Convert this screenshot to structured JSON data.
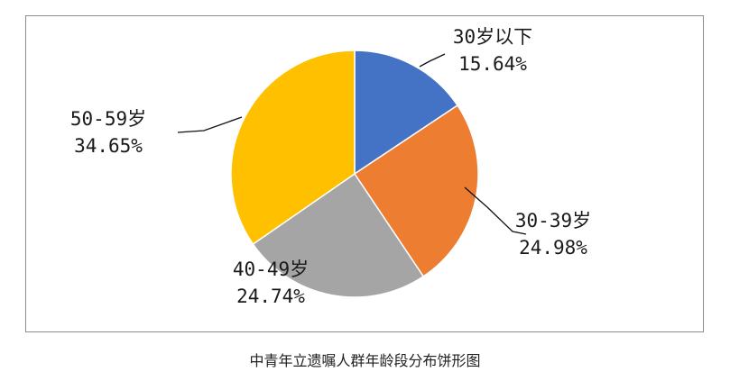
{
  "chart_data": {
    "type": "pie",
    "title": "中青年立遗嘱人群年龄段分布饼形图",
    "slices": [
      {
        "label": "30岁以下",
        "value": 15.64,
        "value_text": "15.64%",
        "color": "#4472C4"
      },
      {
        "label": "30-39岁",
        "value": 24.98,
        "value_text": "24.98%",
        "color": "#ED7D31"
      },
      {
        "label": "40-49岁",
        "value": 24.74,
        "value_text": "24.74%",
        "color": "#A5A5A5"
      },
      {
        "label": "50-59岁",
        "value": 34.65,
        "value_text": "34.65%",
        "color": "#FFC000"
      }
    ],
    "start_angle": "12 o'clock",
    "direction": "clockwise",
    "legend": "none",
    "data_labels": "outside with leader lines"
  }
}
